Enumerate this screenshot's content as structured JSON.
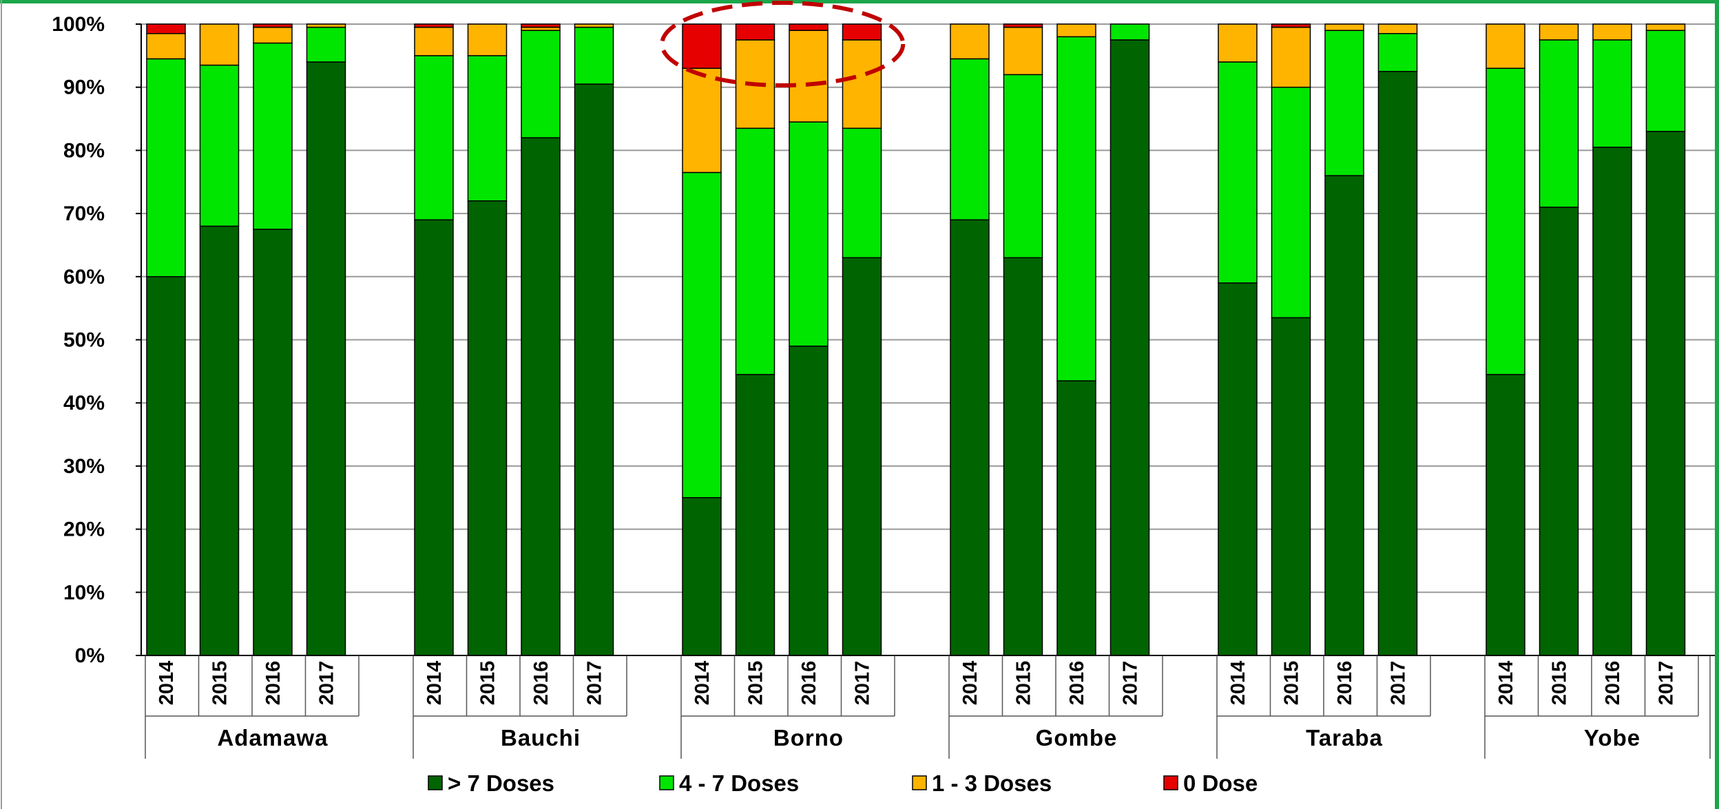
{
  "chart_data": {
    "type": "bar",
    "stacked": true,
    "ylim": [
      0,
      100
    ],
    "y_ticks": [
      "0%",
      "10%",
      "20%",
      "30%",
      "40%",
      "50%",
      "60%",
      "70%",
      "80%",
      "90%",
      "100%"
    ],
    "grid": true,
    "legend_position": "bottom",
    "groups": [
      "Adamawa",
      "Bauchi",
      "Borno",
      "Gombe",
      "Taraba",
      "Yobe"
    ],
    "years": [
      "2014",
      "2015",
      "2016",
      "2017"
    ],
    "series": [
      {
        "name": "> 7 Doses",
        "color": "#006400",
        "values": [
          [
            60,
            68,
            67.5,
            94
          ],
          [
            69,
            72,
            82,
            90.5
          ],
          [
            25,
            44.5,
            49,
            63
          ],
          [
            69,
            63,
            43.5,
            97.5
          ],
          [
            59,
            53.5,
            76,
            92.5
          ],
          [
            44.5,
            71,
            80.5,
            83
          ]
        ]
      },
      {
        "name": "4 - 7 Doses",
        "color": "#00e600",
        "values": [
          [
            34.5,
            25.5,
            29.5,
            5.5
          ],
          [
            26,
            23,
            17,
            9
          ],
          [
            51.5,
            39,
            35.5,
            20.5
          ],
          [
            25.5,
            29,
            54.5,
            2.5
          ],
          [
            35,
            36.5,
            23,
            6
          ],
          [
            48.5,
            26.5,
            17,
            16
          ]
        ]
      },
      {
        "name": "1 - 3 Doses",
        "color": "#ffb400",
        "values": [
          [
            4,
            6.5,
            2.5,
            0.5
          ],
          [
            4.5,
            5,
            0.5,
            0.5
          ],
          [
            16.5,
            14,
            14.5,
            14
          ],
          [
            5.5,
            7.5,
            2,
            0
          ],
          [
            6,
            9.5,
            1,
            1.5
          ],
          [
            7,
            2.5,
            2.5,
            1
          ]
        ]
      },
      {
        "name": "0 Dose",
        "color": "#e60000",
        "values": [
          [
            1.5,
            0,
            0.5,
            0
          ],
          [
            0.5,
            0,
            0.5,
            0
          ],
          [
            7,
            2.5,
            1,
            2.5
          ],
          [
            0,
            0.5,
            0,
            0
          ],
          [
            0,
            0.5,
            0,
            0
          ],
          [
            0,
            0,
            0,
            0
          ]
        ]
      }
    ],
    "annotation": {
      "type": "dashed-ellipse",
      "color": "#c00000",
      "target": "Borno"
    }
  }
}
